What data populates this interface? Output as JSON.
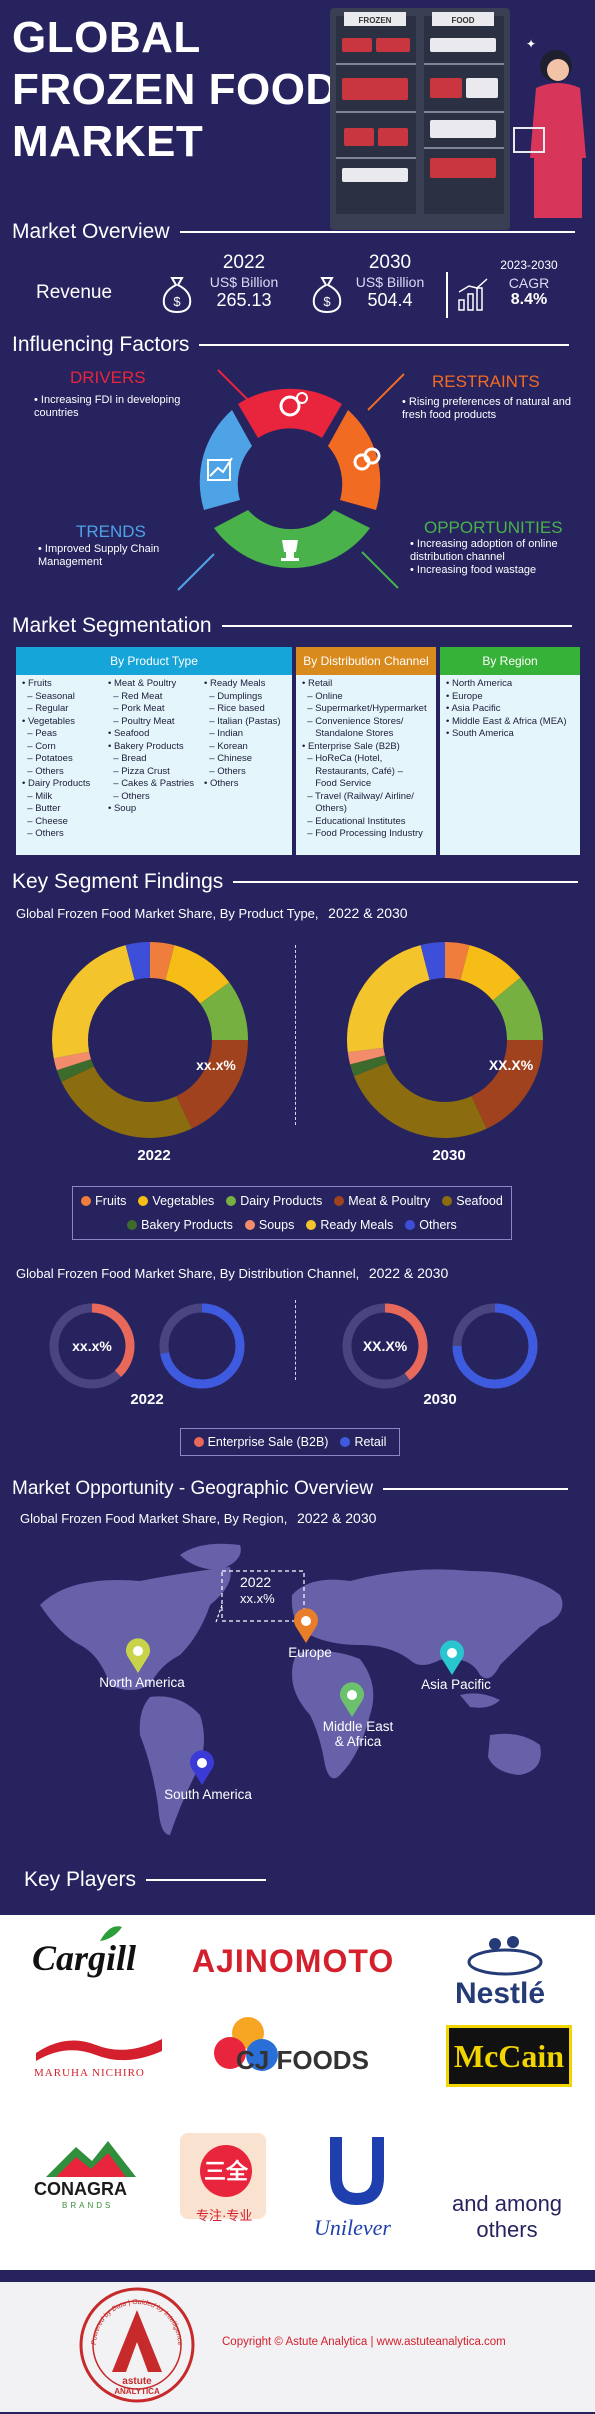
{
  "hero": {
    "title_lines": [
      "GLOBAL",
      "FROZEN FOOD",
      "MARKET"
    ],
    "freezer_labels": [
      "FROZEN",
      "FOOD"
    ]
  },
  "overview": {
    "title": "Market Overview",
    "revenue_label": "Revenue",
    "kpis": [
      {
        "year": "2022",
        "unit": "US$ Billion",
        "value": "265.13"
      },
      {
        "year": "2030",
        "unit": "US$ Billion",
        "value": "504.4"
      },
      {
        "year": "2023-2030",
        "unit": "CAGR",
        "value": "8.4%"
      }
    ]
  },
  "factors": {
    "title": "Influencing Factors",
    "drivers": {
      "title": "DRIVERS",
      "items": [
        "Increasing FDI in developing countries"
      ],
      "color": "#e8253c"
    },
    "restraints": {
      "title": "RESTRAINTS",
      "items": [
        "Rising preferences of natural and fresh food products"
      ],
      "color": "#f26b22"
    },
    "trends": {
      "title": "TRENDS",
      "items": [
        "Improved Supply Chain Management"
      ],
      "color": "#4da3e6"
    },
    "opportunities": {
      "title": "OPPORTUNITIES",
      "items": [
        "Increasing adoption of online distribution channel",
        "Increasing food wastage"
      ],
      "color": "#49b24a"
    }
  },
  "segmentation": {
    "title": "Market Segmentation",
    "columns": [
      {
        "head": "By Product Type",
        "color": "#16a5d8",
        "lists": [
          [
            "• Fruits",
            "  – Seasonal",
            "  – Regular",
            "• Vegetables",
            "  – Peas",
            "  – Corn",
            "  – Potatoes",
            "  – Others",
            "• Dairy Products",
            "  – Milk",
            "  – Butter",
            "  – Cheese",
            "  – Others"
          ],
          [
            "• Meat & Poultry",
            "  – Red Meat",
            "  – Pork Meat",
            "  – Poultry Meat",
            "• Seafood",
            "• Bakery Products",
            "  – Bread",
            "  – Pizza Crust",
            "  – Cakes & Pastries",
            "  – Others",
            "• Soup"
          ],
          [
            "• Ready Meals",
            "  – Dumplings",
            "  – Rice based",
            "  – Italian (Pastas)",
            "  – Indian",
            "  – Korean",
            "  – Chinese",
            "  – Others",
            "• Others"
          ]
        ]
      },
      {
        "head": "By Distribution Channel",
        "color": "#d98a1c",
        "lists": [
          [
            "• Retail",
            "  – Online",
            "  – Supermarket/Hypermarket",
            "  – Convenience Stores/",
            "     Standalone Stores",
            "• Enterprise Sale (B2B)",
            "  – HoReCa (Hotel,",
            "     Restaurants, Café) –",
            "     Food Service",
            "  – Travel (Railway/ Airline/",
            "     Others)",
            "  – Educational Institutes",
            "  – Food Processing Industry"
          ]
        ]
      },
      {
        "head": "By Region",
        "color": "#37b238",
        "lists": [
          [
            "• North America",
            "• Europe",
            "• Asia Pacific",
            "• Middle East & Africa (MEA)",
            "• South America"
          ]
        ]
      }
    ]
  },
  "findings": {
    "title": "Key Segment Findings",
    "product_subtitle": "Global Frozen Food Market Share, By Product Type,",
    "product_years": "2022 & 2030",
    "distribution_subtitle": "Global Frozen Food Market Share, By Distribution Channel,",
    "distribution_years": "2022 & 2030"
  },
  "geo": {
    "title": "Market Opportunity - Geographic Overview",
    "subtitle": "Global Frozen Food Market Share, By Region,",
    "years": "2022 & 2030",
    "callout_year": "2022",
    "callout_value": "xx.x%",
    "regions": [
      {
        "name": "North America",
        "color": "#c8d34a"
      },
      {
        "name": "Europe",
        "color": "#e87d2a"
      },
      {
        "name": "Middle East\n& Africa",
        "color": "#6cc26c"
      },
      {
        "name": "Asia Pacific",
        "color": "#29c6cf"
      },
      {
        "name": "South America",
        "color": "#3a3ad6"
      }
    ]
  },
  "players": {
    "title": "Key Players",
    "logos": [
      "Cargill",
      "AJINOMOTO",
      "Nestlé",
      "MARUHA NICHIRO",
      "CJ FOODS",
      "McCain",
      "CONAGRA",
      "BRANDS",
      "专注·专业",
      "Unilever"
    ],
    "others_text": [
      "and among",
      "others"
    ]
  },
  "footer": {
    "copyright": "Copyright © Astute Analytica  |  www.astuteanalytica.com",
    "logo_name": "astute",
    "logo_sub": "ANALYTICA",
    "logo_ring": "Powered by Data | Guided by Intelligence"
  },
  "chart_data": [
    {
      "type": "pie",
      "title": "Global Frozen Food Market Share, By Product Type, 2022",
      "label": "2022",
      "center_label": "xx.x%",
      "categories": [
        "Fruits",
        "Vegetables",
        "Dairy Products",
        "Meat & Poultry",
        "Seafood",
        "Bakery Products",
        "Soups",
        "Ready Meals",
        "Others"
      ],
      "values": [
        4,
        11,
        10,
        18,
        25,
        2,
        2,
        24,
        4
      ]
    },
    {
      "type": "pie",
      "title": "Global Frozen Food Market Share, By Product Type, 2030",
      "label": "2030",
      "center_label": "XX.X%",
      "categories": [
        "Fruits",
        "Vegetables",
        "Dairy Products",
        "Meat & Poultry",
        "Seafood",
        "Bakery Products",
        "Soups",
        "Ready Meals",
        "Others"
      ],
      "values": [
        4,
        10,
        11,
        18,
        26,
        2,
        2,
        23,
        4
      ]
    },
    {
      "type": "pie",
      "title": "Global Frozen Food Market Share, By Distribution Channel, 2022",
      "label": "2022",
      "categories": [
        "Enterprise Sale (B2B)",
        "Retail"
      ],
      "rings": [
        {
          "center_label": "xx.x%",
          "category": "Enterprise Sale (B2B)",
          "value": 38
        },
        {
          "center_label": "",
          "category": "Retail",
          "value": 72
        }
      ]
    },
    {
      "type": "pie",
      "title": "Global Frozen Food Market Share, By Distribution Channel, 2030",
      "label": "2030",
      "categories": [
        "Enterprise Sale (B2B)",
        "Retail"
      ],
      "rings": [
        {
          "center_label": "XX.X%",
          "category": "Enterprise Sale (B2B)",
          "value": 40
        },
        {
          "center_label": "",
          "category": "Retail",
          "value": 75
        }
      ]
    }
  ],
  "colors": {
    "Fruits": "#ef7d3b",
    "Vegetables": "#f6bd16",
    "Dairy Products": "#76b041",
    "Meat & Poultry": "#a0421d",
    "Seafood": "#8b6d10",
    "Bakery Products": "#3d6b2c",
    "Soups": "#f28c6b",
    "Ready Meals": "#f3c42b",
    "Others": "#3d4fd8",
    "Enterprise Sale (B2B)": "#e8685a",
    "Retail": "#3e5be0"
  }
}
